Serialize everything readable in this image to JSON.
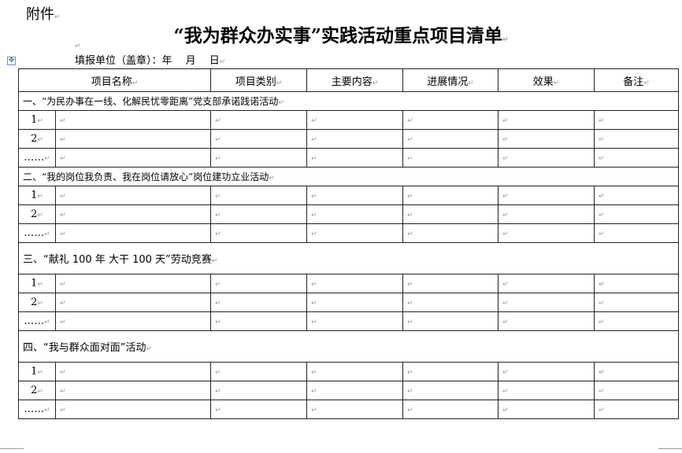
{
  "attachment_label": "附件",
  "title": "“我为群众办实事”实践活动重点项目清单",
  "fill_line": "填报单位（盖章）：年　 月　 日",
  "paragraph_mark": "↵",
  "table": {
    "headers": [
      "项目名称",
      "项目类别",
      "主要内容",
      "进展情况",
      "效果",
      "备注"
    ],
    "sections": [
      {
        "title": "一、“为民办事在一线、化解民忧零距离”党支部承诺践诺活动",
        "rows": [
          "1",
          "2",
          "……"
        ]
      },
      {
        "title": "二、“我的岗位我负责、我在岗位请放心”岗位建功立业活动",
        "rows": [
          "1",
          "2",
          "……"
        ]
      },
      {
        "title": "三、“献礼 100 年 大干 100 天”劳动竞赛",
        "rows": [
          "1",
          "2",
          "……"
        ]
      },
      {
        "title": "四、“我与群众面对面”活动",
        "rows": [
          "1",
          "2",
          "……"
        ]
      }
    ]
  }
}
